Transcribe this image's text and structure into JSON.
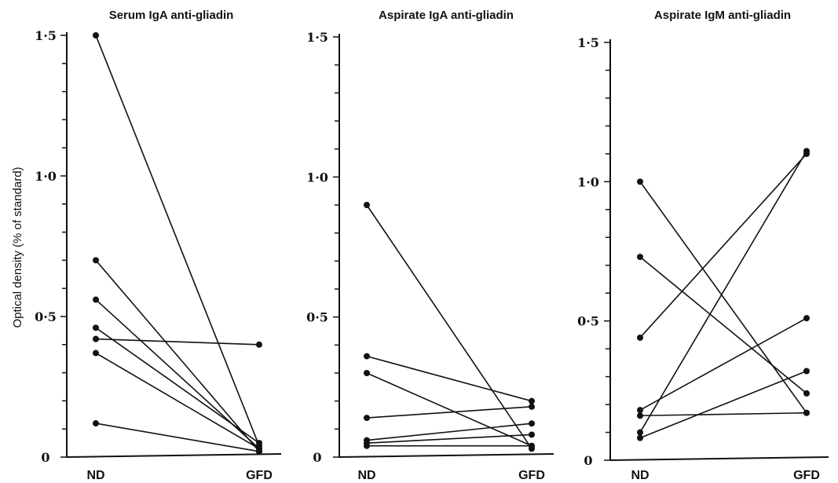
{
  "ylabel": "Optical density (% of standard)",
  "chart_data": [
    {
      "type": "line",
      "title": "Serum IgA anti-gliadin",
      "categories": [
        "ND",
        "GFD"
      ],
      "ylim": [
        0,
        1.5
      ],
      "yticks": [
        "0",
        "0·5",
        "1·0",
        "1·5"
      ],
      "yticks_values": [
        0,
        0.5,
        1.0,
        1.5
      ],
      "series": [
        {
          "values": [
            1.5,
            0.04
          ]
        },
        {
          "values": [
            0.7,
            0.02
          ]
        },
        {
          "values": [
            0.56,
            0.03
          ]
        },
        {
          "values": [
            0.46,
            0.05
          ]
        },
        {
          "values": [
            0.42,
            0.4
          ]
        },
        {
          "values": [
            0.37,
            0.03
          ]
        },
        {
          "values": [
            0.12,
            0.02
          ]
        }
      ]
    },
    {
      "type": "line",
      "title": "Aspirate IgA anti-gliadin",
      "categories": [
        "ND",
        "GFD"
      ],
      "ylim": [
        0,
        1.5
      ],
      "yticks": [
        "0",
        "0·5",
        "1·0",
        "1·5"
      ],
      "yticks_values": [
        0,
        0.5,
        1.0,
        1.5
      ],
      "series": [
        {
          "values": [
            0.9,
            0.03
          ]
        },
        {
          "values": [
            0.36,
            0.2
          ]
        },
        {
          "values": [
            0.3,
            0.04
          ]
        },
        {
          "values": [
            0.14,
            0.18
          ]
        },
        {
          "values": [
            0.06,
            0.12
          ]
        },
        {
          "values": [
            0.05,
            0.08
          ]
        },
        {
          "values": [
            0.04,
            0.04
          ]
        }
      ]
    },
    {
      "type": "line",
      "title": "Aspirate IgM anti-gliadin",
      "categories": [
        "ND",
        "GFD"
      ],
      "ylim": [
        0,
        1.5
      ],
      "yticks": [
        "0",
        "0·5",
        "1·0",
        "1·5"
      ],
      "yticks_values": [
        0,
        0.5,
        1.0,
        1.5
      ],
      "series": [
        {
          "values": [
            1.0,
            0.17
          ]
        },
        {
          "values": [
            0.73,
            0.24
          ]
        },
        {
          "values": [
            0.44,
            1.1
          ]
        },
        {
          "values": [
            0.18,
            0.51
          ]
        },
        {
          "values": [
            0.16,
            0.17
          ]
        },
        {
          "values": [
            0.1,
            1.11
          ]
        },
        {
          "values": [
            0.08,
            0.32
          ]
        }
      ]
    }
  ]
}
